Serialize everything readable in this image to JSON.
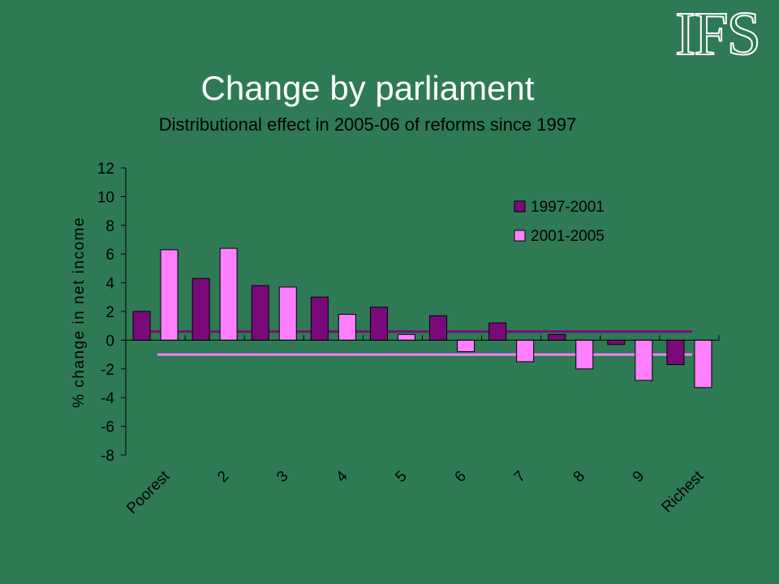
{
  "logo": {
    "text": "IFS"
  },
  "header": {
    "title": "Change by parliament",
    "subtitle": "Distributional effect in 2005-06 of reforms since 1997"
  },
  "colors": {
    "background": "#2e7a55",
    "series_1997": "#7a0a7a",
    "series_2001": "#ff80ff",
    "avg_1997": "#7a0a7a",
    "avg_2001": "#ff80ff"
  },
  "chart_data": {
    "type": "bar",
    "categories": [
      "Poorest",
      "2",
      "3",
      "4",
      "5",
      "6",
      "7",
      "8",
      "9",
      "Richest"
    ],
    "series": [
      {
        "name": "1997-2001",
        "values": [
          2.0,
          4.3,
          3.8,
          3.0,
          2.3,
          1.7,
          1.2,
          0.4,
          -0.3,
          -1.7
        ],
        "average": 0.6
      },
      {
        "name": "2001-2005",
        "values": [
          6.3,
          6.4,
          3.7,
          1.8,
          0.4,
          -0.8,
          -1.5,
          -2.0,
          -2.8,
          -3.3
        ],
        "average": -1.0
      }
    ],
    "title": "Change by parliament",
    "subtitle": "Distributional effect in 2005-06 of reforms since 1997",
    "ylabel": "% change in net income",
    "ylim": [
      -8,
      12
    ],
    "yticks": [
      12,
      10,
      8,
      6,
      4,
      2,
      0,
      -2,
      -4,
      -6,
      -8
    ],
    "grid": false,
    "legend_position": "top-right"
  }
}
